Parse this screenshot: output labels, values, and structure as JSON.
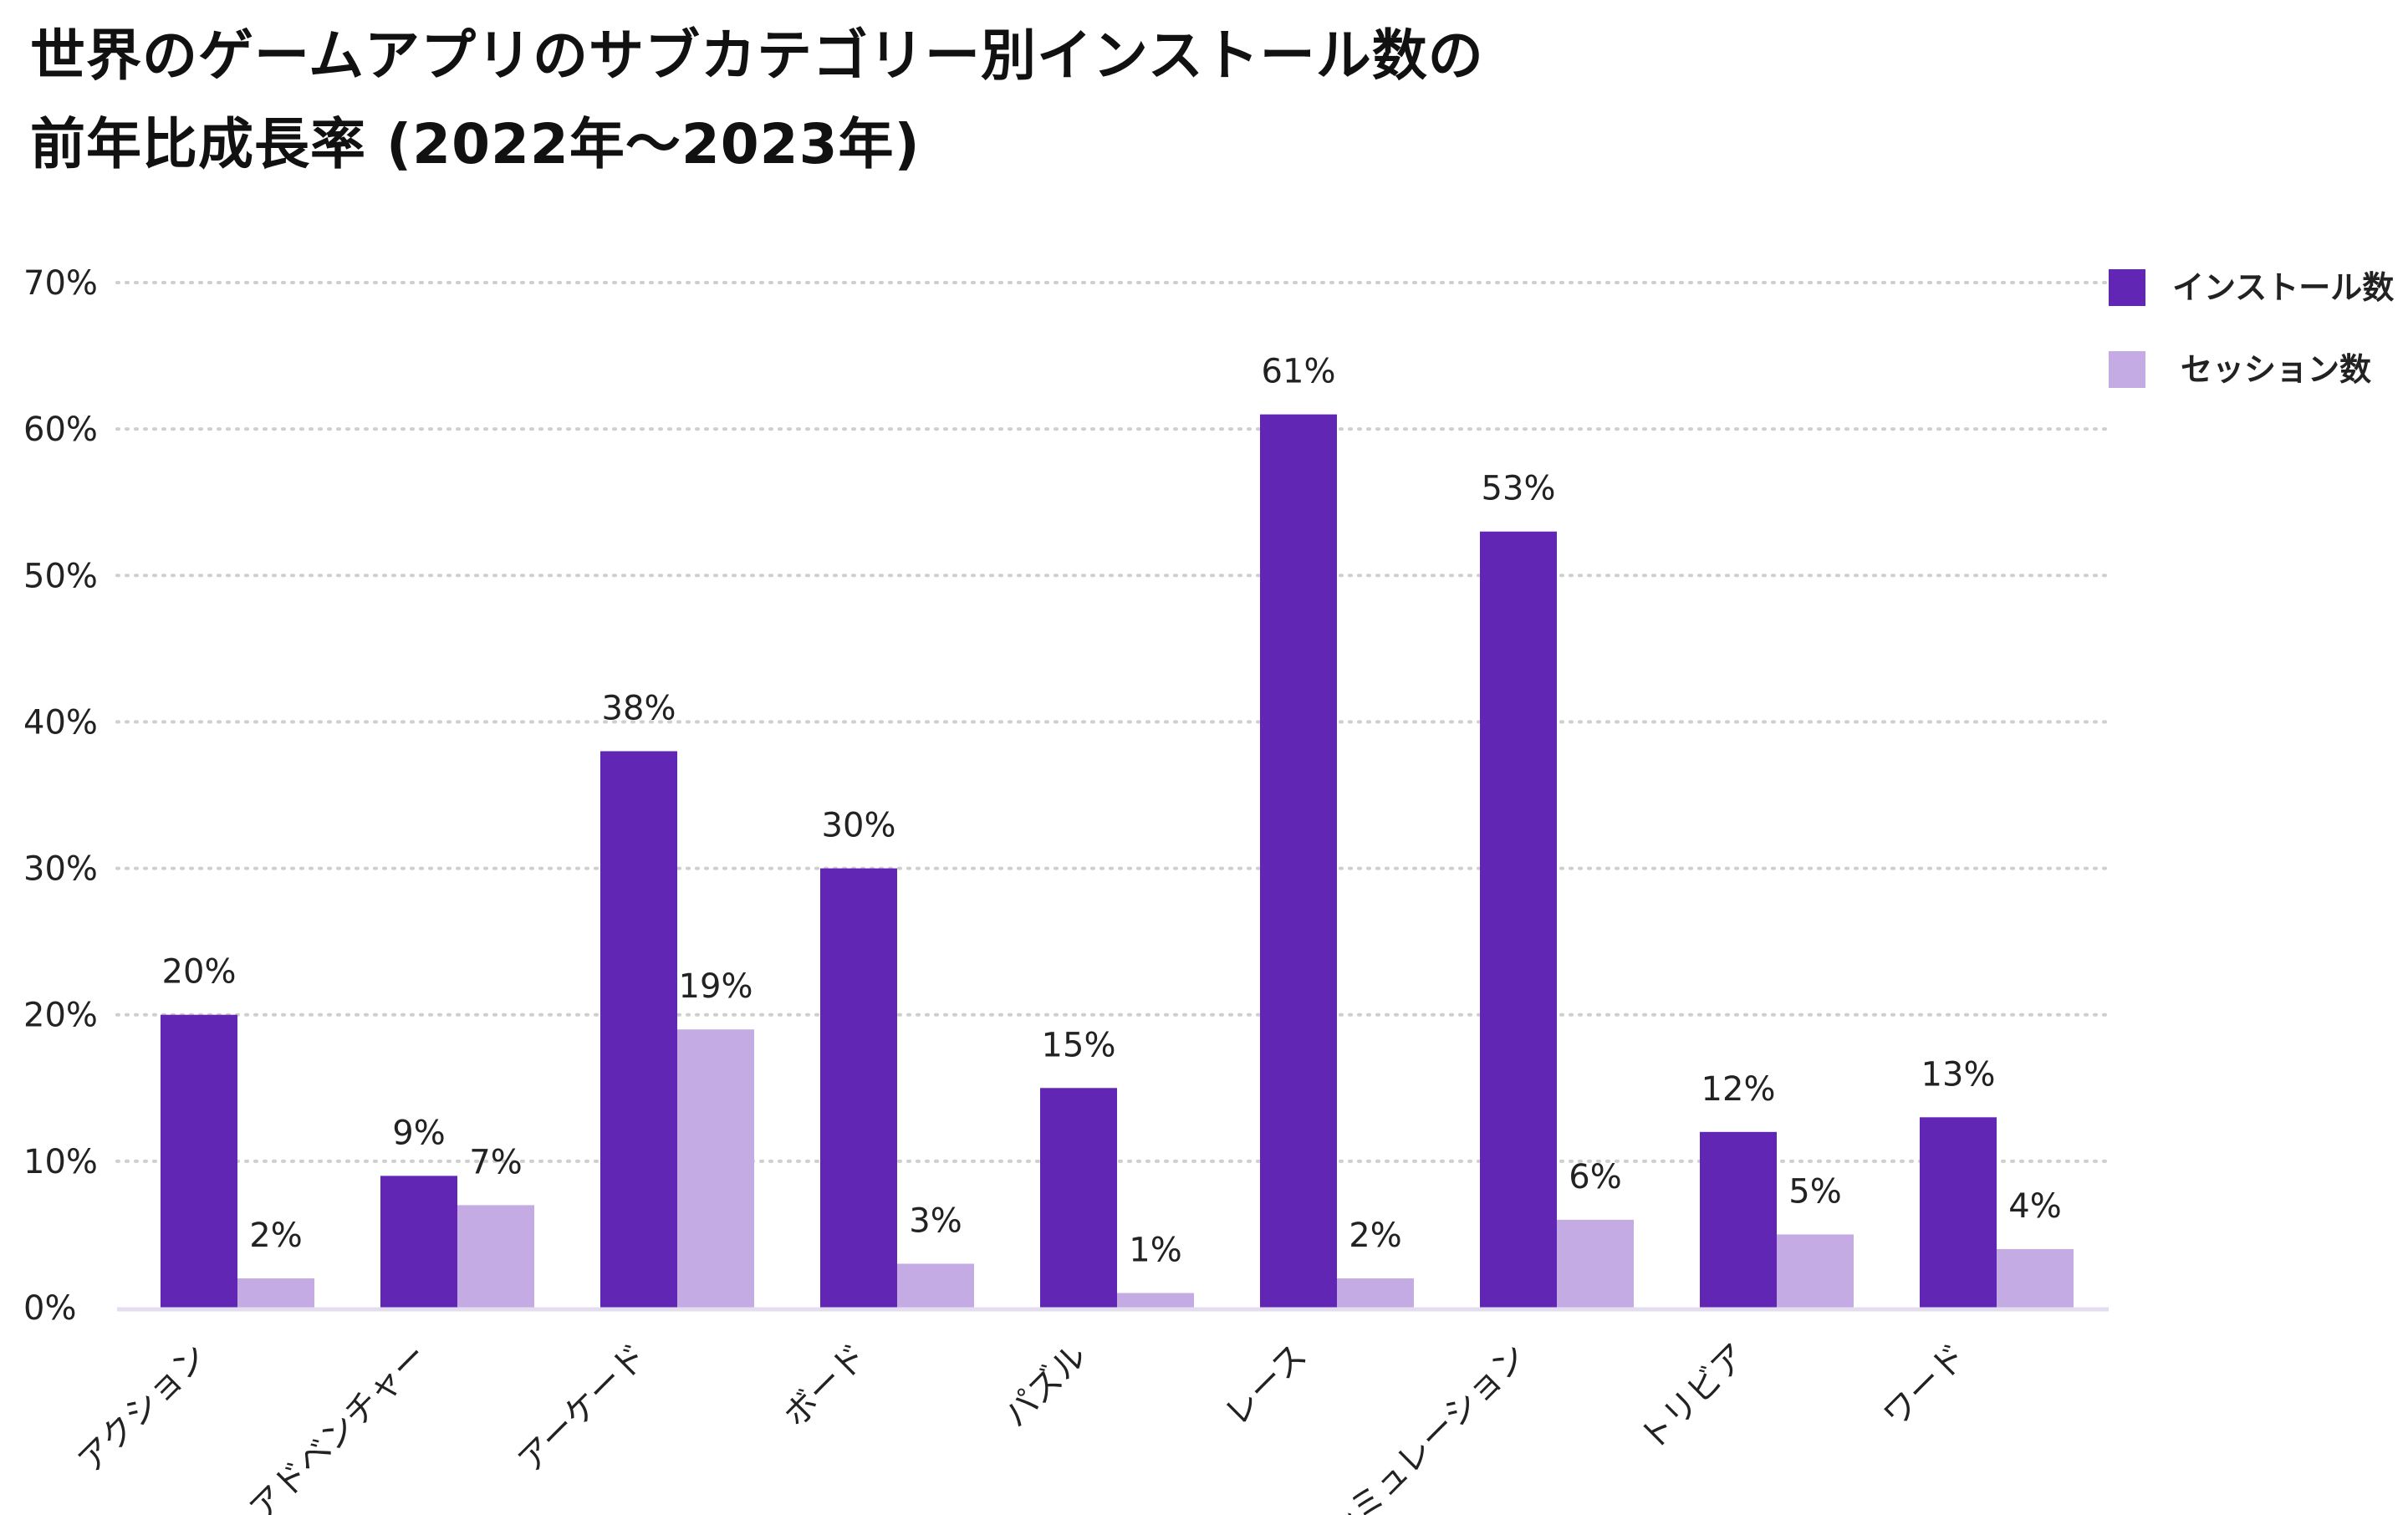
{
  "title": {
    "line1": "世界のゲームアプリのサブカテゴリー別インストール数の",
    "line2": "前年比成長率 (2022年〜2023年)"
  },
  "legend": [
    {
      "name": "インストール数",
      "color": "#6226b5"
    },
    {
      "name": "セッション数",
      "color": "#c4abe3"
    }
  ],
  "chart_data": {
    "type": "bar",
    "title": "世界のゲームアプリのサブカテゴリー別インストール数の 前年比成長率 (2022年〜2023年)",
    "xlabel": "",
    "ylabel": "",
    "ylim": [
      0,
      70
    ],
    "yticks": [
      "0%",
      "10%",
      "20%",
      "30%",
      "40%",
      "50%",
      "60%",
      "70%"
    ],
    "grid": true,
    "legend_position": "top-right",
    "categories": [
      "アクション",
      "アドベンチャー",
      "アーケード",
      "ボード",
      "パズル",
      "レース",
      "シミュレーション",
      "トリビア",
      "ワード"
    ],
    "series": [
      {
        "name": "インストール数",
        "color": "#6226b5",
        "values": [
          20,
          9,
          38,
          30,
          15,
          61,
          53,
          12,
          13
        ]
      },
      {
        "name": "セッション数",
        "color": "#c4abe3",
        "values": [
          2,
          7,
          19,
          3,
          1,
          2,
          6,
          5,
          4
        ]
      }
    ]
  }
}
